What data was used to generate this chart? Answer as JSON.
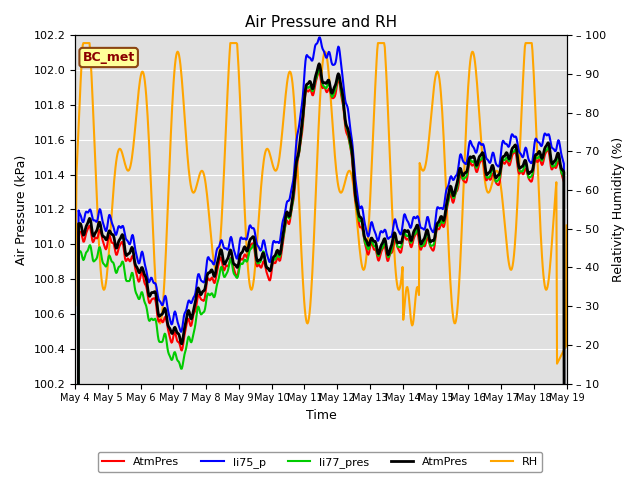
{
  "title": "Air Pressure and RH",
  "xlabel": "Time",
  "ylabel_left": "Air Pressure (kPa)",
  "ylabel_right": "Relativity Humidity (%)",
  "ylim_left": [
    100.2,
    102.2
  ],
  "ylim_right": [
    10,
    100
  ],
  "yticks_left": [
    100.2,
    100.4,
    100.6,
    100.8,
    101.0,
    101.2,
    101.4,
    101.6,
    101.8,
    102.0,
    102.2
  ],
  "yticks_right": [
    10,
    20,
    30,
    40,
    50,
    60,
    70,
    80,
    90,
    100
  ],
  "xtick_labels": [
    "May 4",
    "May 5",
    "May 6",
    "May 7",
    "May 8",
    "May 9",
    "May 10",
    "May 11",
    "May 12",
    "May 13",
    "May 14",
    "May 15",
    "May 16",
    "May 17",
    "May 18",
    "May 19"
  ],
  "fig_bg": "#ffffff",
  "plot_bg": "#e0e0e0",
  "grid_color": "#ffffff",
  "annotation_text": "BC_met",
  "line_colors": [
    "#ff0000",
    "#0000ff",
    "#00cc00",
    "#000000",
    "#ffa500"
  ],
  "line_labels": [
    "AtmPres",
    "li75_p",
    "li77_pres",
    "AtmPres",
    "RH"
  ],
  "line_widths": [
    1.5,
    1.5,
    1.5,
    2.0,
    1.5
  ]
}
